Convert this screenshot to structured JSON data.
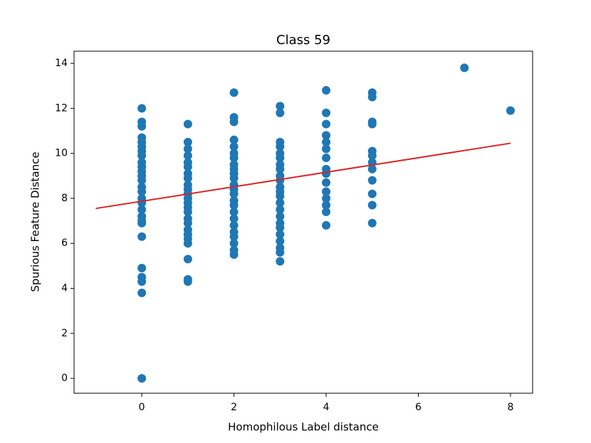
{
  "chart_data": {
    "type": "scatter",
    "title": "Class 59",
    "x_label": "Homophilous Label distance",
    "y_label": "Spurious Feature Distance",
    "xlim": [
      -1.47,
      8.48
    ],
    "ylim": [
      -0.66,
      14.54
    ],
    "xticks": [
      0,
      2,
      4,
      6,
      8
    ],
    "yticks": [
      0,
      2,
      4,
      6,
      8,
      10,
      12,
      14
    ],
    "series": [
      {
        "type": "scatter",
        "color": "#1f77b4",
        "x": [
          0,
          0,
          0,
          0,
          0,
          0,
          0,
          0,
          0,
          0,
          0,
          0,
          0,
          0,
          0,
          0,
          0,
          0,
          0,
          0,
          0,
          0,
          0,
          0,
          0,
          0,
          0,
          1,
          1,
          1,
          1,
          1,
          1,
          1,
          1,
          1,
          1,
          1,
          1,
          1,
          1,
          1,
          1,
          1,
          1,
          1,
          1,
          1,
          1,
          1,
          1,
          2,
          2,
          2,
          2,
          2,
          2,
          2,
          2,
          2,
          2,
          2,
          2,
          2,
          2,
          2,
          2,
          2,
          2,
          2,
          2,
          2,
          2,
          2,
          2,
          3,
          3,
          3,
          3,
          3,
          3,
          3,
          3,
          3,
          3,
          3,
          3,
          3,
          3,
          3,
          3,
          3,
          3,
          3,
          3,
          3,
          3,
          3,
          4,
          4,
          4,
          4,
          4,
          4,
          4,
          4,
          4,
          4,
          4,
          4,
          4,
          4,
          4,
          5,
          5,
          5,
          5,
          5,
          5,
          5,
          5,
          5,
          5,
          5,
          5,
          7,
          8
        ],
        "values": [
          12.0,
          11.4,
          11.2,
          10.7,
          10.5,
          10.3,
          10.1,
          9.9,
          9.6,
          9.4,
          9.2,
          9.0,
          8.8,
          8.5,
          8.3,
          8.0,
          7.8,
          7.5,
          7.2,
          7.0,
          6.9,
          6.3,
          4.9,
          4.5,
          4.3,
          3.8,
          0.0,
          11.3,
          10.5,
          10.2,
          9.9,
          9.6,
          9.4,
          9.1,
          8.9,
          8.6,
          8.4,
          8.2,
          8.0,
          7.8,
          7.6,
          7.4,
          7.1,
          6.9,
          6.6,
          6.4,
          6.2,
          6.0,
          5.3,
          4.4,
          4.3,
          12.7,
          11.6,
          11.4,
          10.6,
          10.3,
          10.0,
          9.8,
          9.5,
          9.3,
          9.1,
          8.9,
          8.6,
          8.4,
          8.2,
          7.9,
          7.7,
          7.4,
          7.1,
          6.8,
          6.5,
          6.3,
          6.0,
          5.7,
          5.5,
          12.1,
          11.8,
          10.5,
          10.3,
          10.0,
          9.8,
          9.5,
          9.3,
          9.0,
          8.8,
          8.5,
          8.3,
          8.1,
          7.8,
          7.5,
          7.2,
          6.9,
          6.7,
          6.4,
          6.1,
          5.8,
          5.6,
          5.2,
          12.8,
          11.8,
          11.3,
          10.8,
          10.5,
          10.2,
          9.8,
          9.3,
          9.1,
          8.7,
          8.3,
          8.0,
          7.7,
          7.4,
          6.8,
          12.7,
          12.5,
          11.4,
          11.3,
          10.1,
          9.9,
          9.6,
          9.3,
          8.8,
          8.2,
          7.7,
          6.9,
          13.8,
          11.9
        ]
      },
      {
        "type": "line",
        "color": "#d62728",
        "x": [
          -1,
          8
        ],
        "values": [
          7.55,
          10.45
        ]
      }
    ]
  }
}
